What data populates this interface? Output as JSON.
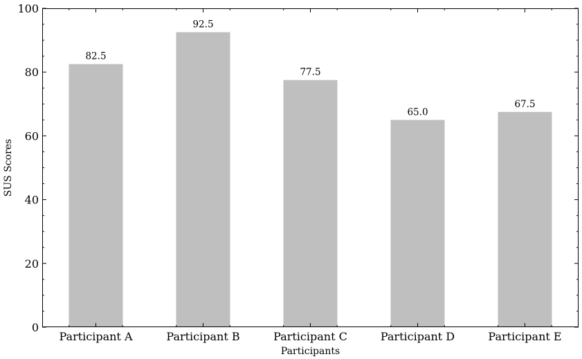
{
  "chart_data": {
    "type": "bar",
    "categories": [
      "Participant A",
      "Participant B",
      "Participant C",
      "Participant D",
      "Participant E"
    ],
    "values": [
      82.5,
      92.5,
      77.5,
      65.0,
      67.5
    ],
    "value_labels": [
      "82.5",
      "92.5",
      "77.5",
      "65.0",
      "67.5"
    ],
    "xlabel": "Participants",
    "ylabel": "SUS Scores",
    "ylim": [
      0,
      100
    ],
    "yticks": [
      0,
      20,
      40,
      60,
      80,
      100
    ],
    "y_minor_step": 5,
    "grid": false,
    "bar_color": "#bfbfbf",
    "axis_color": "#000000"
  }
}
